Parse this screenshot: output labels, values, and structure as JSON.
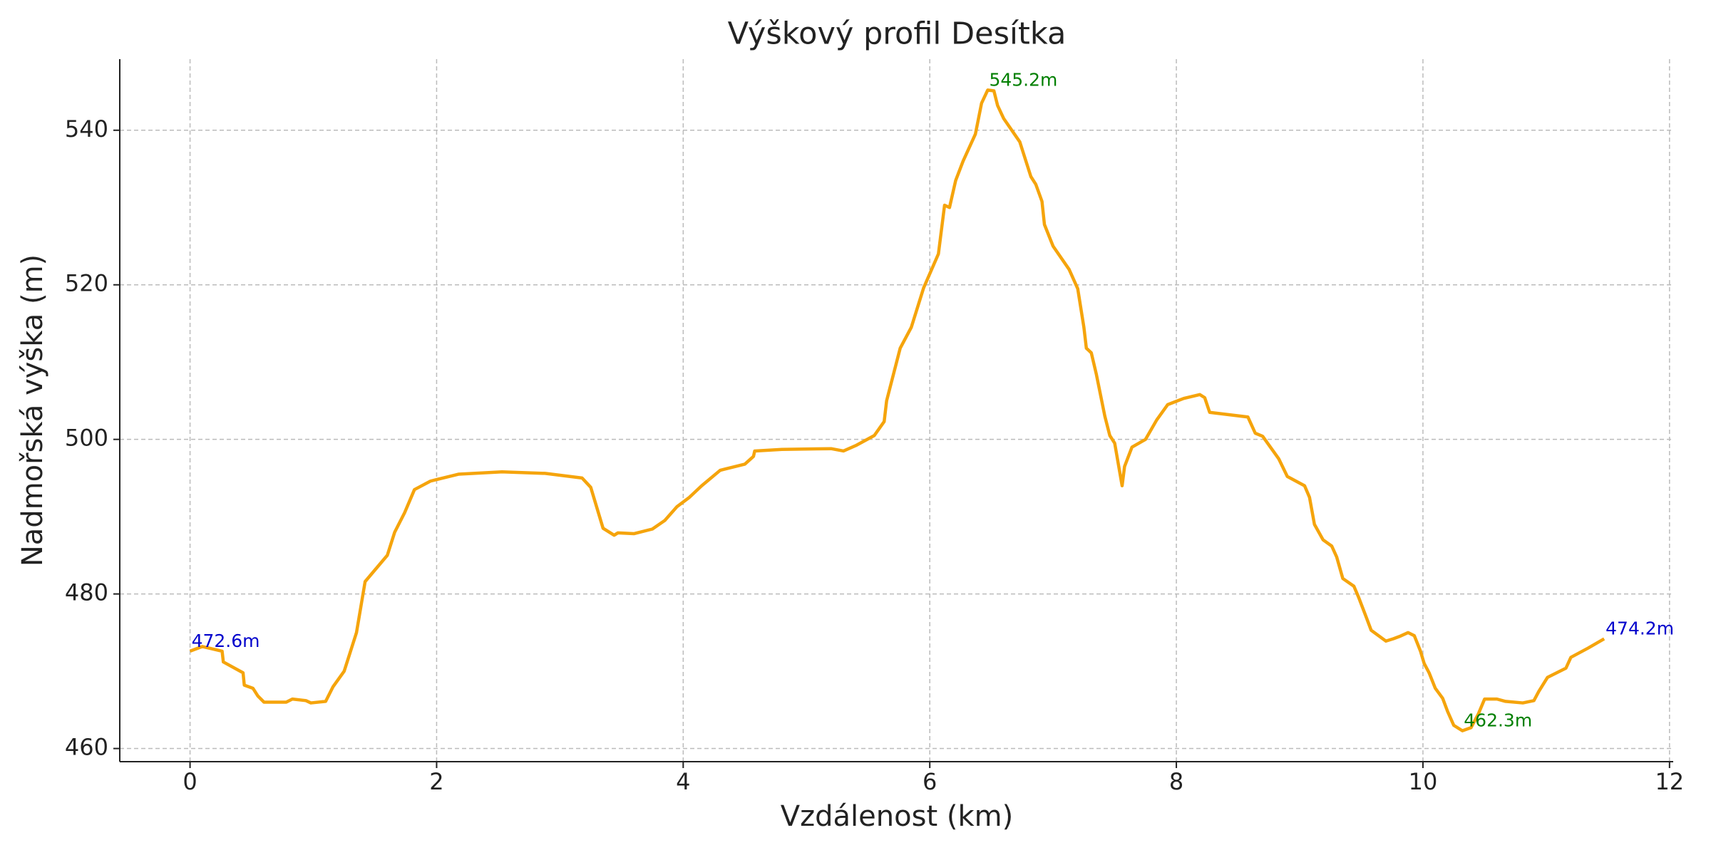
{
  "chart_data": {
    "type": "line",
    "title": "Výškový profil Desítka",
    "xlabel": "Vzdálenost (km)",
    "ylabel": "Nadmořská výška (m)",
    "xlim": [
      -0.57,
      12.03
    ],
    "ylim": [
      458.3,
      549.2
    ],
    "xticks": [
      0,
      2,
      4,
      6,
      8,
      10,
      12
    ],
    "yticks": [
      460,
      480,
      500,
      520,
      540
    ],
    "grid": true,
    "series": [
      {
        "color": "#f5a40c",
        "x": [
          0,
          0.1,
          0.26,
          0.27,
          0.43,
          0.44,
          0.51,
          0.55,
          0.6,
          0.78,
          0.83,
          0.94,
          0.98,
          1.1,
          1.16,
          1.25,
          1.35,
          1.42,
          1.6,
          1.66,
          1.74,
          1.82,
          1.95,
          2.0,
          2.18,
          2.53,
          2.88,
          3.18,
          3.25,
          3.35,
          3.44,
          3.47,
          3.6,
          3.75,
          3.85,
          3.95,
          4.05,
          4.15,
          4.3,
          4.5,
          4.57,
          4.58,
          4.8,
          5.2,
          5.3,
          5.4,
          5.55,
          5.63,
          5.65,
          5.76,
          5.85,
          5.95,
          6.07,
          6.12,
          6.16,
          6.21,
          6.27,
          6.37,
          6.42,
          6.47,
          6.52,
          6.55,
          6.6,
          6.73,
          6.82,
          6.86,
          6.91,
          6.93,
          7.0,
          7.13,
          7.2,
          7.25,
          7.27,
          7.31,
          7.35,
          7.42,
          7.46,
          7.5,
          7.56,
          7.58,
          7.64,
          7.75,
          7.84,
          7.93,
          8.06,
          8.19,
          8.23,
          8.27,
          8.58,
          8.64,
          8.7,
          8.83,
          8.9,
          9.04,
          9.08,
          9.12,
          9.19,
          9.26,
          9.3,
          9.35,
          9.44,
          9.48,
          9.54,
          9.58,
          9.64,
          9.7,
          9.76,
          9.81,
          9.88,
          9.93,
          9.98,
          10.01,
          10.05,
          10.1,
          10.16,
          10.2,
          10.25,
          10.32,
          10.39,
          10.45,
          10.5,
          10.6,
          10.67,
          10.81,
          10.9,
          10.94,
          11.01,
          11.16,
          11.2,
          11.34,
          11.47
        ],
        "values": [
          472.6,
          473.2,
          472.6,
          471.2,
          469.8,
          468.2,
          467.8,
          466.8,
          466.0,
          466.0,
          466.4,
          466.2,
          465.9,
          466.1,
          468.0,
          470.0,
          475.0,
          481.6,
          485.0,
          488.0,
          490.5,
          493.5,
          494.6,
          494.8,
          495.5,
          495.8,
          495.6,
          495.0,
          493.8,
          488.5,
          487.6,
          487.9,
          487.8,
          488.4,
          489.5,
          491.3,
          492.5,
          494.0,
          496.0,
          496.8,
          497.8,
          498.5,
          498.7,
          498.8,
          498.5,
          499.2,
          500.5,
          502.3,
          505.0,
          511.8,
          514.5,
          519.6,
          524.0,
          530.3,
          530.0,
          533.5,
          536.0,
          539.5,
          543.5,
          545.2,
          545.1,
          543.2,
          541.5,
          538.5,
          534.0,
          533.0,
          530.8,
          527.8,
          525.0,
          522.0,
          519.5,
          514.5,
          511.8,
          511.2,
          508.5,
          503.0,
          500.5,
          499.5,
          494.0,
          496.5,
          499.0,
          500.0,
          502.5,
          504.5,
          505.3,
          505.8,
          505.4,
          503.5,
          502.9,
          500.8,
          500.4,
          497.5,
          495.2,
          494.0,
          492.5,
          489.0,
          487.0,
          486.2,
          484.8,
          482.0,
          481.0,
          479.5,
          477.0,
          475.3,
          474.6,
          473.9,
          474.2,
          474.5,
          475.0,
          474.6,
          472.6,
          471.0,
          469.8,
          467.8,
          466.5,
          464.8,
          463.0,
          462.3,
          462.7,
          464.5,
          466.4,
          466.4,
          466.1,
          465.9,
          466.2,
          467.4,
          469.2,
          470.4,
          471.8,
          473.0,
          474.2
        ]
      }
    ],
    "annotations": [
      {
        "label": "472.6m",
        "x": 0,
        "y": 472.6,
        "color": "#0000cc"
      },
      {
        "label": "545.2m",
        "x": 6.47,
        "y": 545.2,
        "color": "#007f00"
      },
      {
        "label": "462.3m",
        "x": 10.32,
        "y": 462.3,
        "color": "#007f00"
      },
      {
        "label": "474.2m",
        "x": 11.47,
        "y": 474.2,
        "color": "#0000cc"
      }
    ]
  }
}
